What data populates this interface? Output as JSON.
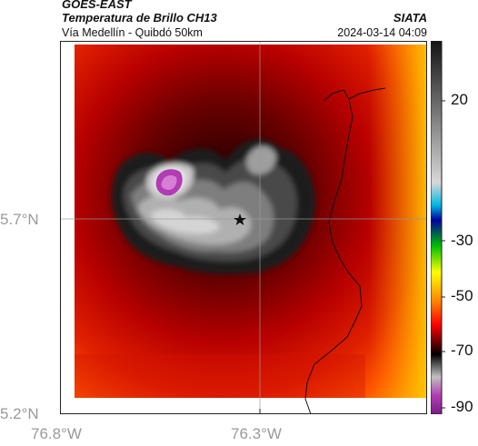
{
  "header": {
    "satellite": "GOES-EAST",
    "product": "Temperatura de Brillo CH13",
    "region": "Vía Medellín - Quibdó 50km",
    "organization": "SIATA",
    "timestamp": "2024-03-14 04:09"
  },
  "axes": {
    "lat_ticks": [
      "5.7°N",
      "5.2°N"
    ],
    "lon_ticks": [
      "76.8°W",
      "76.3°W"
    ]
  },
  "colorbar": {
    "ticks": [
      "20",
      "-30",
      "-50",
      "-70",
      "-90"
    ],
    "range": [
      -95,
      50
    ]
  },
  "colors": {
    "warm": "#ff3010",
    "hot": "#ffdd00",
    "cold": "#222222",
    "gray": "#b4b4b4",
    "coldest": "#b03cb0"
  },
  "marker": {
    "icon": "star-icon"
  }
}
